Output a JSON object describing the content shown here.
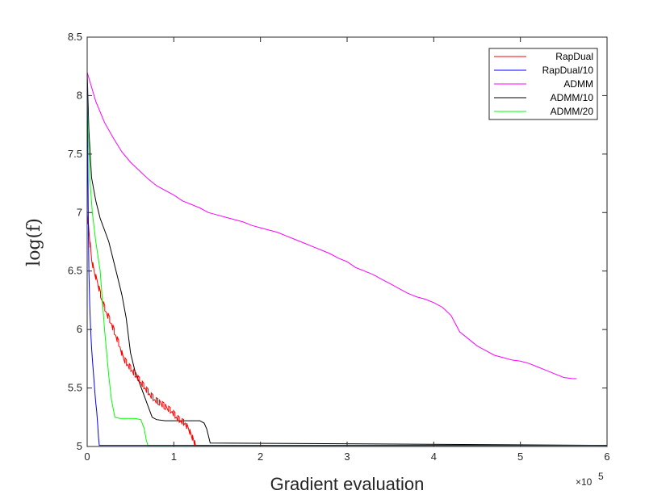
{
  "chart_data": {
    "type": "line",
    "title": "",
    "xlabel": "Gradient evaluation",
    "ylabel": "log(f)",
    "x_multiplier_label": "×10",
    "x_multiplier_exp": "5",
    "xlim": [
      0,
      6
    ],
    "ylim": [
      5,
      8.5
    ],
    "xticks": [
      0,
      1,
      2,
      3,
      4,
      5,
      6
    ],
    "yticks": [
      5,
      5.5,
      6,
      6.5,
      7,
      7.5,
      8,
      8.5
    ],
    "xtick_labels": [
      "0",
      "1",
      "2",
      "3",
      "4",
      "5",
      "6"
    ],
    "ytick_labels": [
      "5",
      "5.5",
      "6",
      "6.5",
      "7",
      "7.5",
      "8",
      "8.5"
    ],
    "grid": false,
    "legend_position": "top-right",
    "series": [
      {
        "name": "RapDual",
        "color": "#ff0000",
        "noisy": true,
        "x": [
          0,
          0.02,
          0.05,
          0.08,
          0.12,
          0.17,
          0.22,
          0.28,
          0.33,
          0.38,
          0.42,
          0.47,
          0.52,
          0.57,
          0.62,
          0.67,
          0.72,
          0.78,
          0.85,
          0.92,
          0.98,
          1.03,
          1.08,
          1.13,
          1.17,
          1.2,
          1.23,
          1.25,
          1.3,
          6
        ],
        "y": [
          7.0,
          6.85,
          6.6,
          6.5,
          6.4,
          6.25,
          6.15,
          6.05,
          5.95,
          5.85,
          5.75,
          5.7,
          5.65,
          5.6,
          5.55,
          5.5,
          5.45,
          5.4,
          5.37,
          5.33,
          5.3,
          5.25,
          5.22,
          5.2,
          5.15,
          5.1,
          5.05,
          5.01,
          5.01,
          5.01
        ]
      },
      {
        "name": "RapDual/10",
        "color": "#0000ff",
        "noisy": false,
        "x": [
          0,
          0.005,
          0.01,
          0.015,
          0.02,
          0.03,
          0.04,
          0.05,
          0.06,
          0.07,
          0.08,
          0.09,
          0.1,
          0.11,
          0.12,
          0.13,
          0.14,
          6
        ],
        "y": [
          8.2,
          7.7,
          7.2,
          6.8,
          6.5,
          6.2,
          6.0,
          5.85,
          5.75,
          5.65,
          5.55,
          5.45,
          5.37,
          5.3,
          5.2,
          5.08,
          5.01,
          5.01
        ]
      },
      {
        "name": "ADMM",
        "color": "#ff00ff",
        "noisy": false,
        "x": [
          0,
          0.1,
          0.2,
          0.3,
          0.4,
          0.5,
          0.6,
          0.7,
          0.8,
          0.9,
          1.0,
          1.1,
          1.2,
          1.3,
          1.4,
          1.5,
          1.6,
          1.7,
          1.8,
          1.9,
          2.0,
          2.1,
          2.2,
          2.3,
          2.4,
          2.5,
          2.6,
          2.7,
          2.8,
          2.9,
          3.0,
          3.1,
          3.2,
          3.3,
          3.4,
          3.5,
          3.6,
          3.7,
          3.8,
          3.9,
          4.0,
          4.1,
          4.2,
          4.3,
          4.4,
          4.5,
          4.6,
          4.7,
          4.8,
          4.9,
          5.0,
          5.1,
          5.2,
          5.3,
          5.4,
          5.5,
          5.6,
          5.65
        ],
        "y": [
          8.2,
          7.95,
          7.77,
          7.64,
          7.52,
          7.43,
          7.36,
          7.29,
          7.23,
          7.19,
          7.15,
          7.1,
          7.07,
          7.04,
          7.0,
          6.98,
          6.96,
          6.94,
          6.92,
          6.89,
          6.87,
          6.85,
          6.83,
          6.8,
          6.77,
          6.74,
          6.71,
          6.68,
          6.65,
          6.61,
          6.58,
          6.53,
          6.5,
          6.47,
          6.43,
          6.39,
          6.35,
          6.31,
          6.28,
          6.26,
          6.23,
          6.19,
          6.12,
          5.98,
          5.92,
          5.86,
          5.82,
          5.78,
          5.76,
          5.74,
          5.73,
          5.71,
          5.68,
          5.65,
          5.62,
          5.59,
          5.58,
          5.58
        ]
      },
      {
        "name": "ADMM/10",
        "color": "#000000",
        "noisy": false,
        "x": [
          0,
          0.02,
          0.05,
          0.1,
          0.15,
          0.2,
          0.25,
          0.3,
          0.35,
          0.4,
          0.45,
          0.5,
          0.55,
          0.6,
          0.65,
          0.7,
          0.75,
          0.8,
          0.9,
          1.0,
          1.1,
          1.2,
          1.3,
          1.35,
          1.38,
          1.42,
          6
        ],
        "y": [
          8.2,
          7.7,
          7.3,
          7.1,
          6.95,
          6.85,
          6.75,
          6.6,
          6.45,
          6.3,
          6.1,
          5.8,
          5.65,
          5.55,
          5.45,
          5.35,
          5.25,
          5.23,
          5.22,
          5.22,
          5.22,
          5.22,
          5.22,
          5.2,
          5.15,
          5.03,
          5.01
        ]
      },
      {
        "name": "ADMM/20",
        "color": "#00ff00",
        "noisy": false,
        "x": [
          0,
          0.03,
          0.06,
          0.1,
          0.15,
          0.2,
          0.25,
          0.28,
          0.32,
          0.38,
          0.45,
          0.55,
          0.62,
          0.66,
          0.68,
          0.7,
          6
        ],
        "y": [
          8.0,
          7.3,
          7.0,
          6.75,
          6.5,
          6.0,
          5.6,
          5.4,
          5.25,
          5.24,
          5.24,
          5.24,
          5.23,
          5.15,
          5.06,
          5.01,
          5.01
        ]
      }
    ]
  }
}
